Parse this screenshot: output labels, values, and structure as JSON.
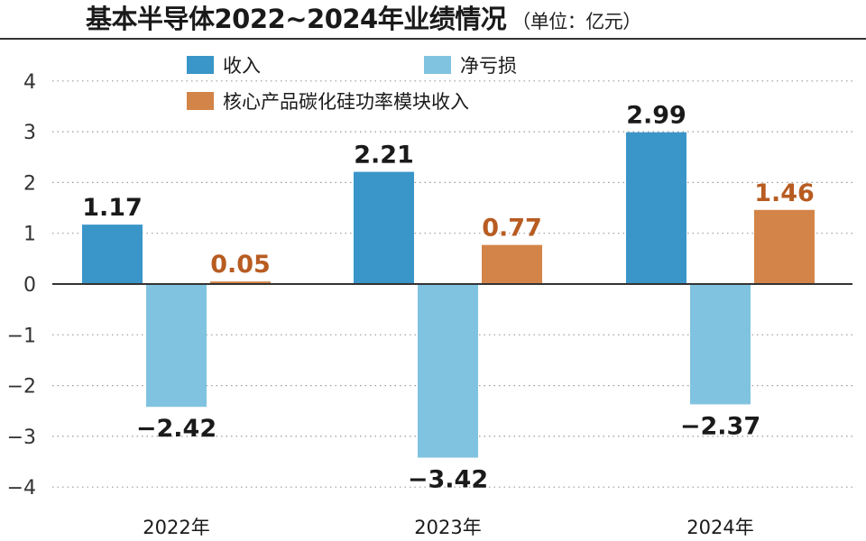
{
  "title": "基本半导体2022~2024年业绩情况",
  "unit": "（单位：亿元）",
  "colors": {
    "revenue": "#3a95c8",
    "net_loss": "#80c3e0",
    "core_revenue": "#d38448",
    "core_label": "#b85c22",
    "text": "#1a1a1a",
    "axis": "#333333",
    "grid": "#9a9a9a"
  },
  "chart_data": {
    "type": "bar",
    "title": "基本半导体2022~2024年业绩情况",
    "unit": "（单位：亿元）",
    "categories": [
      "2022年",
      "2023年",
      "2024年"
    ],
    "series": [
      {
        "name": "收入",
        "values": [
          1.17,
          2.21,
          2.99
        ],
        "labels": [
          "1.17",
          "2.21",
          "2.99"
        ],
        "color": "#3a95c8",
        "label_color": "#1a1a1a"
      },
      {
        "name": "净亏损",
        "values": [
          -2.42,
          -3.42,
          -2.37
        ],
        "labels": [
          "−2.42",
          "−3.42",
          "−2.37"
        ],
        "color": "#80c3e0",
        "label_color": "#1a1a1a"
      },
      {
        "name": "核心产品碳化硅功率模块收入",
        "values": [
          0.05,
          0.77,
          1.46
        ],
        "labels": [
          "0.05",
          "0.77",
          "1.46"
        ],
        "color": "#d38448",
        "label_color": "#b85c22"
      }
    ],
    "yticks": [
      4,
      3,
      2,
      1,
      0,
      -1,
      -2,
      -3,
      -4
    ],
    "ytick_labels": [
      "4",
      "3",
      "2",
      "1",
      "0",
      "−1",
      "−2",
      "−3",
      "−4"
    ],
    "ylim": [
      -4,
      4.4
    ],
    "grid": "dotted horizontal",
    "legend": "top"
  }
}
